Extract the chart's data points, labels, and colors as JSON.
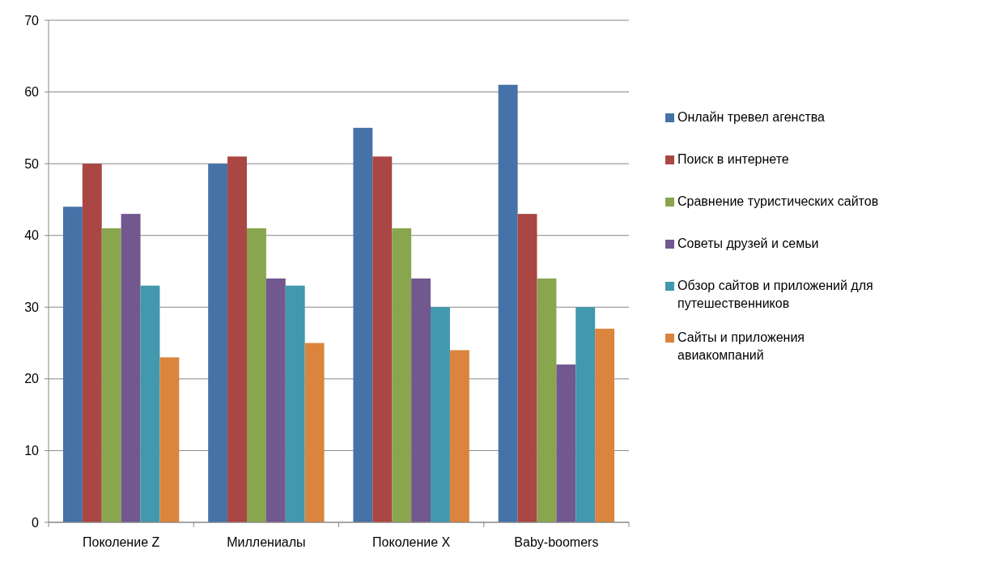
{
  "chart_data": {
    "type": "bar",
    "categories": [
      "Поколение Z",
      "Миллениалы",
      "Поколение X",
      "Baby-boomers"
    ],
    "series": [
      {
        "name": "Онлайн тревел агенства",
        "color": "#4572a7",
        "values": [
          44,
          50,
          55,
          61
        ]
      },
      {
        "name": "Поиск в интернете",
        "color": "#aa4643",
        "values": [
          50,
          51,
          51,
          43
        ]
      },
      {
        "name": "Сравнение туристических сайтов",
        "color": "#89a54e",
        "values": [
          41,
          41,
          41,
          34
        ]
      },
      {
        "name": "Советы друзей и семьи",
        "color": "#71588f",
        "values": [
          43,
          34,
          34,
          22
        ]
      },
      {
        "name": "Обзор сайтов и приложений для путешественников",
        "color": "#4198af",
        "values": [
          33,
          33,
          30,
          30
        ]
      },
      {
        "name": "Сайты и приложения авиакомпаний",
        "color": "#db843d",
        "values": [
          23,
          25,
          24,
          27
        ]
      }
    ],
    "ylim": [
      0,
      70
    ],
    "yticks": [
      0,
      10,
      20,
      30,
      40,
      50,
      60,
      70
    ],
    "grid": "y",
    "legend": "right"
  }
}
